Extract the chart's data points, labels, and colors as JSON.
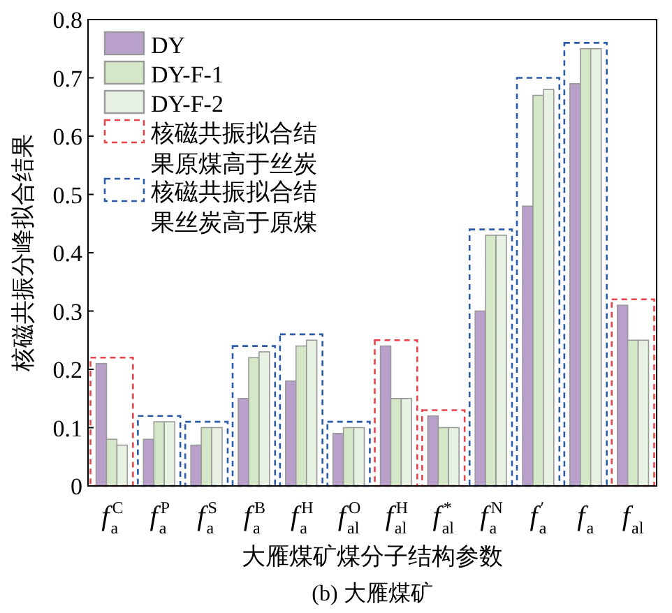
{
  "chart_data": {
    "type": "bar",
    "title": "(b) 大雁煤矿",
    "xlabel": "大雁煤矿煤分子结构参数",
    "ylabel": "核磁共振分峰拟合结果",
    "categories": [
      "f$^{C}$$_{a}$",
      "f$^{P}$$_{a}$",
      "f$^{S}$$_{a}$",
      "f$^{B}$$_{a}$",
      "f$^{H}$$_{a}$",
      "f$^{O}$$_{al}$",
      "f$^{H}$$_{al}$",
      "f$^{*}$$_{al}$",
      "f$^{N}$$_{a}$",
      "f$^{′}$$_{a}$",
      "f$_{a}$",
      "f$_{al}$"
    ],
    "series": [
      {
        "name": "DY",
        "color": "#b9a0cb",
        "values": [
          0.21,
          0.08,
          0.07,
          0.15,
          0.18,
          0.09,
          0.24,
          0.12,
          0.3,
          0.48,
          0.69,
          0.31
        ]
      },
      {
        "name": "DY-F-1",
        "color": "#d4e8c8",
        "values": [
          0.08,
          0.11,
          0.1,
          0.22,
          0.24,
          0.1,
          0.15,
          0.1,
          0.43,
          0.67,
          0.75,
          0.25
        ]
      },
      {
        "name": "DY-F-2",
        "color": "#e8f2e2",
        "values": [
          0.07,
          0.11,
          0.1,
          0.23,
          0.25,
          0.1,
          0.15,
          0.1,
          0.43,
          0.68,
          0.75,
          0.25
        ]
      },
      {
        "name": "核磁共振拟合结果原煤高于丝炭",
        "color": "#e8434a",
        "line_style": "dashed",
        "values": [
          0.22,
          null,
          null,
          null,
          null,
          null,
          0.25,
          0.13,
          null,
          null,
          null,
          0.32
        ]
      },
      {
        "name": "核磁共振拟合结果丝炭高于原煤",
        "color": "#2a5caa",
        "line_style": "dashed",
        "values": [
          null,
          0.12,
          0.11,
          0.24,
          0.26,
          0.11,
          null,
          null,
          0.44,
          0.7,
          0.76,
          null
        ]
      }
    ],
    "ylim": [
      0,
      0.8
    ],
    "yticks": [
      0,
      0.1,
      0.2,
      0.3,
      0.4,
      0.5,
      0.6,
      0.7,
      0.8
    ],
    "legend": "top left"
  }
}
